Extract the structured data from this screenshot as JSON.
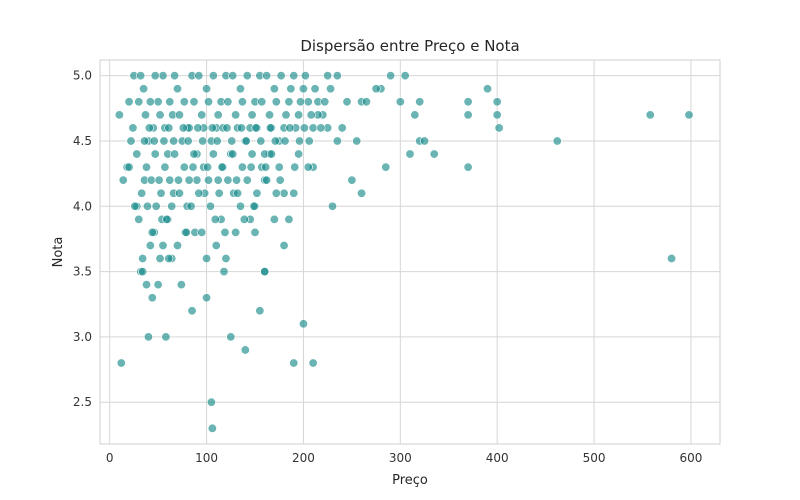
{
  "chart_data": {
    "type": "scatter",
    "title": "Dispersão entre Preço e Nota",
    "xlabel": "Preço",
    "ylabel": "Nota",
    "xlim": [
      -10,
      630
    ],
    "ylim": [
      2.18,
      5.12
    ],
    "xticks": [
      0,
      100,
      200,
      300,
      400,
      500,
      600
    ],
    "yticks": [
      2.5,
      3.0,
      3.5,
      4.0,
      4.5,
      5.0
    ],
    "xtick_labels": [
      "0",
      "100",
      "200",
      "300",
      "400",
      "500",
      "600"
    ],
    "ytick_labels": [
      "2.5",
      "3.0",
      "3.5",
      "4.0",
      "4.5",
      "5.0"
    ],
    "grid": true,
    "marker_color": "#1a8c8c",
    "marker_opacity": 0.65,
    "points": [
      [
        12,
        2.8
      ],
      [
        10,
        4.7
      ],
      [
        14,
        4.2
      ],
      [
        18,
        4.3
      ],
      [
        20,
        4.8
      ],
      [
        22,
        4.5
      ],
      [
        25,
        5.0
      ],
      [
        28,
        4.0
      ],
      [
        30,
        3.9
      ],
      [
        32,
        3.5
      ],
      [
        34,
        3.6
      ],
      [
        36,
        4.2
      ],
      [
        38,
        3.4
      ],
      [
        40,
        3.0
      ],
      [
        42,
        3.7
      ],
      [
        44,
        3.3
      ],
      [
        46,
        3.8
      ],
      [
        50,
        3.4
      ],
      [
        52,
        3.6
      ],
      [
        55,
        3.7
      ],
      [
        58,
        3.0
      ],
      [
        60,
        3.9
      ],
      [
        64,
        3.6
      ],
      [
        70,
        3.7
      ],
      [
        74,
        3.4
      ],
      [
        78,
        3.8
      ],
      [
        85,
        3.2
      ],
      [
        88,
        3.8
      ],
      [
        100,
        3.3
      ],
      [
        100,
        3.6
      ],
      [
        105,
        2.5
      ],
      [
        106,
        2.3
      ],
      [
        110,
        3.7
      ],
      [
        118,
        3.5
      ],
      [
        120,
        3.6
      ],
      [
        125,
        3.0
      ],
      [
        140,
        2.9
      ],
      [
        155,
        3.2
      ],
      [
        160,
        3.5
      ],
      [
        180,
        3.7
      ],
      [
        190,
        2.8
      ],
      [
        200,
        3.1
      ],
      [
        210,
        2.8
      ],
      [
        185,
        3.9
      ],
      [
        170,
        3.9
      ],
      [
        150,
        3.8
      ],
      [
        145,
        3.9
      ],
      [
        130,
        3.8
      ],
      [
        115,
        3.9
      ],
      [
        95,
        3.8
      ],
      [
        230,
        4.0
      ],
      [
        250,
        4.2
      ],
      [
        260,
        4.1
      ],
      [
        285,
        4.3
      ],
      [
        310,
        4.4
      ],
      [
        315,
        4.7
      ],
      [
        320,
        4.5
      ],
      [
        325,
        4.5
      ],
      [
        335,
        4.4
      ],
      [
        370,
        4.3
      ],
      [
        300,
        4.8
      ],
      [
        320,
        4.8
      ],
      [
        280,
        4.9
      ],
      [
        290,
        5.0
      ],
      [
        305,
        5.0
      ],
      [
        370,
        4.8
      ],
      [
        370,
        4.7
      ],
      [
        390,
        4.9
      ],
      [
        400,
        4.8
      ],
      [
        400,
        4.7
      ],
      [
        402,
        4.6
      ],
      [
        462,
        4.5
      ],
      [
        558,
        4.7
      ],
      [
        598,
        4.7
      ],
      [
        580,
        3.6
      ],
      [
        245,
        4.8
      ],
      [
        255,
        4.5
      ],
      [
        260,
        4.8
      ],
      [
        265,
        4.8
      ],
      [
        275,
        4.9
      ],
      [
        240,
        4.6
      ],
      [
        235,
        4.5
      ],
      [
        225,
        4.6
      ],
      [
        220,
        4.7
      ],
      [
        215,
        4.7
      ],
      [
        210,
        4.3
      ],
      [
        205,
        4.3
      ],
      [
        195,
        4.4
      ],
      [
        190,
        4.1
      ],
      [
        180,
        4.1
      ],
      [
        175,
        4.3
      ],
      [
        165,
        4.4
      ],
      [
        160,
        4.2
      ],
      [
        150,
        4.0
      ],
      [
        135,
        4.0
      ],
      [
        128,
        4.1
      ],
      [
        112,
        4.2
      ],
      [
        98,
        4.1
      ],
      [
        90,
        4.2
      ],
      [
        80,
        4.0
      ],
      [
        66,
        4.1
      ],
      [
        48,
        4.0
      ],
      [
        26,
        4.0
      ],
      [
        24,
        4.6
      ],
      [
        20,
        4.3
      ],
      [
        30,
        4.8
      ],
      [
        35,
        4.9
      ],
      [
        40,
        4.5
      ],
      [
        45,
        4.6
      ],
      [
        50,
        4.8
      ],
      [
        55,
        5.0
      ],
      [
        60,
        4.4
      ],
      [
        65,
        4.7
      ],
      [
        70,
        4.9
      ],
      [
        75,
        4.5
      ],
      [
        80,
        4.6
      ],
      [
        85,
        5.0
      ],
      [
        90,
        4.4
      ],
      [
        95,
        4.7
      ],
      [
        100,
        4.9
      ],
      [
        105,
        4.5
      ],
      [
        110,
        4.6
      ],
      [
        115,
        4.8
      ],
      [
        120,
        5.0
      ],
      [
        125,
        4.4
      ],
      [
        130,
        4.7
      ],
      [
        135,
        4.9
      ],
      [
        140,
        4.5
      ],
      [
        145,
        4.6
      ],
      [
        150,
        4.8
      ],
      [
        155,
        5.0
      ],
      [
        160,
        4.4
      ],
      [
        165,
        4.7
      ],
      [
        170,
        4.9
      ],
      [
        175,
        4.5
      ],
      [
        180,
        4.6
      ],
      [
        185,
        4.8
      ],
      [
        190,
        5.0
      ],
      [
        195,
        4.7
      ],
      [
        200,
        4.9
      ],
      [
        205,
        4.8
      ],
      [
        210,
        4.6
      ],
      [
        215,
        4.8
      ],
      [
        225,
        5.0
      ],
      [
        235,
        5.0
      ],
      [
        28,
        4.4
      ],
      [
        33,
        4.1
      ],
      [
        38,
        4.3
      ],
      [
        43,
        4.2
      ],
      [
        47,
        4.4
      ],
      [
        53,
        4.1
      ],
      [
        57,
        4.3
      ],
      [
        62,
        4.2
      ],
      [
        67,
        4.4
      ],
      [
        72,
        4.1
      ],
      [
        77,
        4.3
      ],
      [
        82,
        4.2
      ],
      [
        87,
        4.4
      ],
      [
        92,
        4.1
      ],
      [
        97,
        4.3
      ],
      [
        102,
        4.2
      ],
      [
        107,
        4.4
      ],
      [
        113,
        4.1
      ],
      [
        117,
        4.3
      ],
      [
        122,
        4.2
      ],
      [
        127,
        4.4
      ],
      [
        132,
        4.1
      ],
      [
        137,
        4.3
      ],
      [
        142,
        4.2
      ],
      [
        147,
        4.4
      ],
      [
        152,
        4.1
      ],
      [
        157,
        4.3
      ],
      [
        162,
        4.2
      ],
      [
        167,
        4.4
      ],
      [
        172,
        4.1
      ],
      [
        32,
        5.0
      ],
      [
        37,
        4.7
      ],
      [
        42,
        4.8
      ],
      [
        47,
        5.0
      ],
      [
        52,
        4.7
      ],
      [
        57,
        4.6
      ],
      [
        62,
        4.8
      ],
      [
        67,
        5.0
      ],
      [
        72,
        4.7
      ],
      [
        77,
        4.8
      ],
      [
        82,
        4.6
      ],
      [
        87,
        4.8
      ],
      [
        92,
        5.0
      ],
      [
        97,
        4.6
      ],
      [
        102,
        4.8
      ],
      [
        107,
        5.0
      ],
      [
        112,
        4.7
      ],
      [
        117,
        4.6
      ],
      [
        122,
        4.8
      ],
      [
        127,
        5.0
      ],
      [
        132,
        4.6
      ],
      [
        137,
        4.8
      ],
      [
        142,
        5.0
      ],
      [
        147,
        4.7
      ],
      [
        152,
        4.6
      ],
      [
        157,
        4.8
      ],
      [
        162,
        5.0
      ],
      [
        167,
        4.6
      ],
      [
        172,
        4.8
      ],
      [
        177,
        5.0
      ],
      [
        182,
        4.7
      ],
      [
        187,
        4.9
      ],
      [
        192,
        4.6
      ],
      [
        197,
        4.8
      ],
      [
        202,
        5.0
      ],
      [
        208,
        4.7
      ],
      [
        212,
        4.9
      ],
      [
        218,
        4.6
      ],
      [
        222,
        4.8
      ],
      [
        228,
        4.9
      ],
      [
        36,
        4.5
      ],
      [
        41,
        4.6
      ],
      [
        46,
        4.5
      ],
      [
        51,
        4.2
      ],
      [
        56,
        4.5
      ],
      [
        61,
        4.6
      ],
      [
        66,
        4.5
      ],
      [
        71,
        4.2
      ],
      [
        76,
        4.6
      ],
      [
        81,
        4.5
      ],
      [
        86,
        4.3
      ],
      [
        91,
        4.6
      ],
      [
        96,
        4.5
      ],
      [
        101,
        4.3
      ],
      [
        106,
        4.6
      ],
      [
        111,
        4.5
      ],
      [
        116,
        4.3
      ],
      [
        121,
        4.6
      ],
      [
        126,
        4.5
      ],
      [
        131,
        4.2
      ],
      [
        136,
        4.6
      ],
      [
        141,
        4.5
      ],
      [
        146,
        4.3
      ],
      [
        151,
        4.6
      ],
      [
        156,
        4.5
      ],
      [
        161,
        4.3
      ],
      [
        166,
        4.6
      ],
      [
        171,
        4.5
      ],
      [
        176,
        4.2
      ],
      [
        181,
        4.5
      ],
      [
        186,
        4.6
      ],
      [
        191,
        4.3
      ],
      [
        196,
        4.5
      ],
      [
        201,
        4.6
      ],
      [
        206,
        4.5
      ],
      [
        54,
        3.9
      ],
      [
        44,
        3.8
      ],
      [
        61,
        3.6
      ],
      [
        34,
        3.5
      ],
      [
        160,
        3.5
      ],
      [
        39,
        4.0
      ],
      [
        59,
        3.9
      ],
      [
        79,
        3.8
      ],
      [
        109,
        3.9
      ],
      [
        119,
        3.8
      ],
      [
        139,
        3.9
      ],
      [
        149,
        4.0
      ],
      [
        64,
        4.0
      ],
      [
        84,
        4.0
      ],
      [
        104,
        4.0
      ]
    ]
  }
}
